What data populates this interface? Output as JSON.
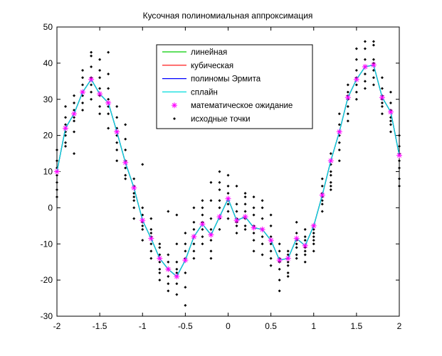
{
  "chart_data": {
    "type": "line",
    "title": "Кусочная полиномиальная аппроксимация",
    "xlabel": "",
    "ylabel": "",
    "xlim": [
      -2,
      2
    ],
    "ylim": [
      -30,
      50
    ],
    "grid": false,
    "legend_location": "top-center",
    "x_ticks": [
      -2,
      -1.5,
      -1,
      -0.5,
      0,
      0.5,
      1,
      1.5,
      2
    ],
    "x_tick_labels": [
      "-2",
      "-1.5",
      "-1",
      "-0.5",
      "0",
      "0.5",
      "1",
      "1.5",
      "2"
    ],
    "y_ticks": [
      -30,
      -20,
      -10,
      0,
      10,
      20,
      30,
      40,
      50
    ],
    "y_tick_labels": [
      "-30",
      "-20",
      "-10",
      "0",
      "10",
      "20",
      "30",
      "40",
      "50"
    ],
    "expected_x": [
      -2,
      -1.9,
      -1.8,
      -1.7,
      -1.6,
      -1.5,
      -1.4,
      -1.3,
      -1.2,
      -1.1,
      -1.0,
      -0.9,
      -0.8,
      -0.7,
      -0.6,
      -0.5,
      -0.4,
      -0.3,
      -0.2,
      -0.1,
      0.0,
      0.1,
      0.2,
      0.3,
      0.4,
      0.5,
      0.6,
      0.7,
      0.8,
      0.9,
      1.0,
      1.1,
      1.2,
      1.3,
      1.4,
      1.5,
      1.6,
      1.7,
      1.8,
      1.9,
      2.0
    ],
    "expected_y": [
      10,
      22,
      26,
      32,
      35.5,
      31.5,
      29,
      21,
      12.5,
      5.5,
      -3.5,
      -8.5,
      -14,
      -17,
      -19,
      -14.5,
      -8,
      -4.5,
      -7.5,
      -2.5,
      2.5,
      -3.5,
      -2.5,
      -5.5,
      -6,
      -9,
      -14.5,
      -14,
      -8.5,
      -10.5,
      -5,
      3.5,
      13,
      21,
      30.5,
      35.5,
      39,
      39.5,
      30.5,
      26.5,
      14.5
    ],
    "series": [
      {
        "name": "линейная",
        "color": "#00cc00",
        "style": "line"
      },
      {
        "name": "кубическая",
        "color": "#ff0000",
        "style": "line"
      },
      {
        "name": "полиномы Эрмита",
        "color": "#0000ff",
        "style": "line"
      },
      {
        "name": "сплайн",
        "color": "#00dddd",
        "style": "line"
      },
      {
        "name": "математическое ожидание",
        "color": "#ff00ff",
        "style": "marker-asterisk"
      },
      {
        "name": "исходные точки",
        "color": "#000000",
        "style": "marker-dot"
      }
    ],
    "scatter_x": [
      -2,
      -2,
      -2,
      -2,
      -2,
      -2,
      -2,
      -1.9,
      -1.9,
      -1.9,
      -1.9,
      -1.9,
      -1.9,
      -1.9,
      -1.8,
      -1.8,
      -1.8,
      -1.8,
      -1.8,
      -1.8,
      -1.8,
      -1.7,
      -1.7,
      -1.7,
      -1.7,
      -1.7,
      -1.7,
      -1.7,
      -1.6,
      -1.6,
      -1.6,
      -1.6,
      -1.6,
      -1.6,
      -1.6,
      -1.5,
      -1.5,
      -1.5,
      -1.5,
      -1.5,
      -1.5,
      -1.5,
      -1.4,
      -1.4,
      -1.4,
      -1.4,
      -1.4,
      -1.4,
      -1.4,
      -1.3,
      -1.3,
      -1.3,
      -1.3,
      -1.3,
      -1.3,
      -1.3,
      -1.2,
      -1.2,
      -1.2,
      -1.2,
      -1.2,
      -1.2,
      -1.2,
      -1.1,
      -1.1,
      -1.1,
      -1.1,
      -1.1,
      -1.1,
      -1.1,
      -1.0,
      -1.0,
      -1.0,
      -1.0,
      -1.0,
      -1.0,
      -1.0,
      -0.9,
      -0.9,
      -0.9,
      -0.9,
      -0.9,
      -0.9,
      -0.9,
      -0.8,
      -0.8,
      -0.8,
      -0.8,
      -0.8,
      -0.8,
      -0.8,
      -0.7,
      -0.7,
      -0.7,
      -0.7,
      -0.7,
      -0.7,
      -0.7,
      -0.6,
      -0.6,
      -0.6,
      -0.6,
      -0.6,
      -0.6,
      -0.6,
      -0.5,
      -0.5,
      -0.5,
      -0.5,
      -0.5,
      -0.5,
      -0.5,
      -0.4,
      -0.4,
      -0.4,
      -0.4,
      -0.4,
      -0.4,
      -0.4,
      -0.3,
      -0.3,
      -0.3,
      -0.3,
      -0.3,
      -0.3,
      -0.3,
      -0.2,
      -0.2,
      -0.2,
      -0.2,
      -0.2,
      -0.2,
      -0.2,
      -0.1,
      -0.1,
      -0.1,
      -0.1,
      -0.1,
      -0.1,
      -0.1,
      0.0,
      0.0,
      0.0,
      0.0,
      0.0,
      0.0,
      0.0,
      0.1,
      0.1,
      0.1,
      0.1,
      0.1,
      0.1,
      0.1,
      0.2,
      0.2,
      0.2,
      0.2,
      0.2,
      0.2,
      0.2,
      0.3,
      0.3,
      0.3,
      0.3,
      0.3,
      0.3,
      0.3,
      0.4,
      0.4,
      0.4,
      0.4,
      0.4,
      0.4,
      0.4,
      0.5,
      0.5,
      0.5,
      0.5,
      0.5,
      0.5,
      0.5,
      0.6,
      0.6,
      0.6,
      0.6,
      0.6,
      0.6,
      0.6,
      0.7,
      0.7,
      0.7,
      0.7,
      0.7,
      0.7,
      0.7,
      0.8,
      0.8,
      0.8,
      0.8,
      0.8,
      0.8,
      0.8,
      0.9,
      0.9,
      0.9,
      0.9,
      0.9,
      0.9,
      0.9,
      1.0,
      1.0,
      1.0,
      1.0,
      1.0,
      1.0,
      1.0,
      1.1,
      1.1,
      1.1,
      1.1,
      1.1,
      1.1,
      1.1,
      1.2,
      1.2,
      1.2,
      1.2,
      1.2,
      1.2,
      1.2,
      1.3,
      1.3,
      1.3,
      1.3,
      1.3,
      1.3,
      1.3,
      1.4,
      1.4,
      1.4,
      1.4,
      1.4,
      1.4,
      1.4,
      1.5,
      1.5,
      1.5,
      1.5,
      1.5,
      1.5,
      1.5,
      1.6,
      1.6,
      1.6,
      1.6,
      1.6,
      1.6,
      1.6,
      1.7,
      1.7,
      1.7,
      1.7,
      1.7,
      1.7,
      1.7,
      1.8,
      1.8,
      1.8,
      1.8,
      1.8,
      1.8,
      1.8,
      1.9,
      1.9,
      1.9,
      1.9,
      1.9,
      1.9,
      1.9,
      2.0,
      2.0,
      2.0,
      2.0,
      2.0,
      2.0,
      2.0
    ],
    "scatter_y": [
      16,
      13,
      11,
      9,
      7,
      5,
      3,
      28,
      25,
      23,
      21,
      20,
      18,
      17,
      31,
      29,
      27,
      25,
      24,
      21,
      15,
      38,
      36,
      34,
      32,
      31,
      29,
      27,
      43,
      42,
      39,
      36,
      34,
      32,
      30,
      41,
      38,
      36,
      33,
      31,
      28,
      26,
      43,
      37,
      33,
      30,
      28,
      26,
      22,
      28,
      25,
      22,
      20,
      18,
      16,
      13,
      23,
      19,
      16,
      13,
      11,
      9,
      8,
      8,
      6,
      4,
      3,
      2,
      0,
      -3,
      12,
      0,
      -2,
      -4,
      -5,
      -6,
      -9,
      -3,
      -6,
      -7,
      -8,
      -10,
      -12,
      -14,
      -10,
      -11,
      -13,
      -15,
      -17,
      -18,
      -20,
      -1,
      -13,
      -15,
      -17,
      -19,
      -21,
      -23,
      -2,
      -10,
      -15,
      -17,
      -18,
      -21,
      -24,
      -7,
      -10,
      -12,
      -14,
      -18,
      -22,
      -27,
      0,
      -4,
      -6,
      -8,
      -10,
      -12,
      -14,
      0,
      2,
      -2,
      -4,
      -6,
      -8,
      -10,
      7,
      2,
      -3,
      -6,
      -9,
      -12,
      -14,
      10,
      7,
      5,
      2,
      0,
      -3,
      -6,
      9,
      6,
      4,
      2,
      1,
      -1,
      -3,
      6,
      1,
      -1,
      -3,
      -4,
      -5,
      -7,
      4,
      3,
      1,
      -1,
      -3,
      -5,
      -6,
      3,
      0,
      -2,
      -5,
      -7,
      -9,
      -12,
      2,
      0,
      -3,
      -6,
      -8,
      -10,
      -13,
      -2,
      -5,
      -8,
      -10,
      -12,
      -14,
      -16,
      -10,
      -12,
      -14,
      -15,
      -17,
      -20,
      -23,
      -12,
      -13,
      -14,
      -15,
      -16,
      -18,
      -19,
      -4,
      -7,
      -9,
      -10,
      -11,
      -13,
      -14,
      -6,
      -8,
      -9,
      -11,
      -12,
      -13,
      -15,
      -5,
      -6,
      -7,
      -8,
      -9,
      -10,
      -12,
      8,
      6,
      4,
      3,
      2,
      1,
      -1,
      15,
      12,
      10,
      9,
      7,
      6,
      5,
      26,
      23,
      21,
      20,
      18,
      16,
      13,
      34,
      32,
      31,
      30,
      28,
      26,
      24,
      44,
      41,
      38,
      36,
      34,
      32,
      30,
      46,
      44,
      41,
      39,
      37,
      35,
      33,
      46,
      45,
      41,
      40,
      38,
      36,
      34,
      36,
      33,
      31,
      30,
      29,
      28,
      26,
      32,
      29,
      27,
      25,
      24,
      23,
      21,
      20,
      17,
      15,
      13,
      11,
      8,
      6
    ]
  }
}
